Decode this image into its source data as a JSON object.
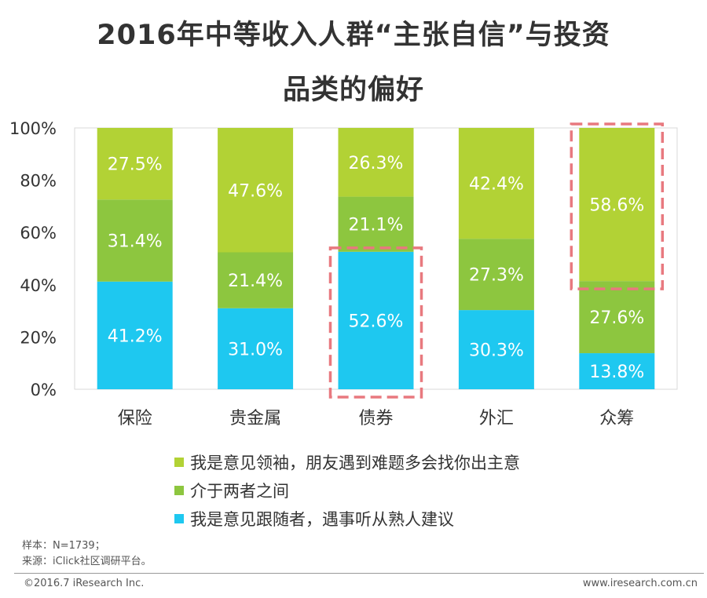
{
  "title_line1": "2016年中等收入人群“主张自信”与投资",
  "title_line2": "品类的偏好",
  "chart_data": {
    "type": "bar",
    "stacked": true,
    "categories": [
      "保险",
      "贵金属",
      "债券",
      "外汇",
      "众筹"
    ],
    "series": [
      {
        "name": "我是意见跟随者，遇事听从熟人建议",
        "color": "#1EC8F0",
        "values": [
          41.2,
          31.0,
          52.6,
          30.3,
          13.8
        ]
      },
      {
        "name": "介于两者之间",
        "color": "#8DC63F",
        "values": [
          31.4,
          21.4,
          21.1,
          27.3,
          27.6
        ]
      },
      {
        "name": "我是意见领袖，朋友遇到难题多会找你出主意",
        "color": "#B2D235",
        "values": [
          27.5,
          47.6,
          26.3,
          42.4,
          58.6
        ]
      }
    ],
    "value_labels": [
      [
        "41.2%",
        "31.0%",
        "52.6%",
        "30.3%",
        "13.8%"
      ],
      [
        "31.4%",
        "21.4%",
        "21.1%",
        "27.3%",
        "27.6%"
      ],
      [
        "27.5%",
        "47.6%",
        "26.3%",
        "42.4%",
        "58.6%"
      ]
    ],
    "y_ticks": [
      "0%",
      "20%",
      "40%",
      "60%",
      "80%",
      "100%"
    ],
    "ylim": [
      0,
      100
    ],
    "highlights": [
      {
        "category": "债券",
        "series_index": 0
      },
      {
        "category": "众筹",
        "series_index": 2
      }
    ],
    "highlight_color": "#E8797F"
  },
  "legend": [
    {
      "label": "我是意见领袖，朋友遇到难题多会找你出主意",
      "color": "#B2D235"
    },
    {
      "label": "介于两者之间",
      "color": "#8DC63F"
    },
    {
      "label": "我是意见跟随者，遇事听从熟人建议",
      "color": "#1EC8F0"
    }
  ],
  "notes": {
    "sample": "样本：N=1739；",
    "source": "来源：iClick社区调研平台。"
  },
  "footer": {
    "copyright": "©2016.7 iResearch Inc.",
    "website": "www.iresearch.com.cn"
  }
}
